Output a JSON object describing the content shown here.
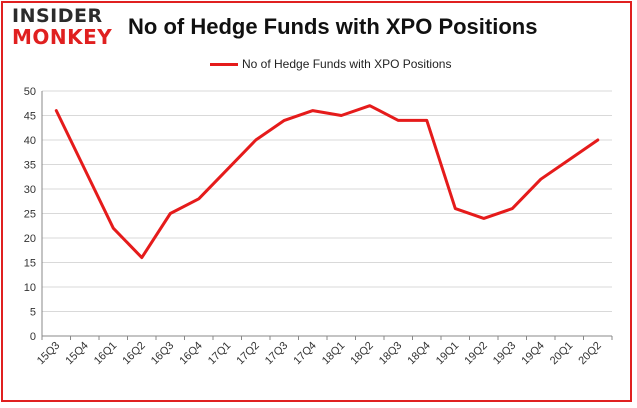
{
  "logo": {
    "line1": "INSIDER",
    "line2": "MONKEY"
  },
  "chart_data": {
    "type": "line",
    "title": "No of Hedge Funds with XPO Positions",
    "legend_position": "top-center",
    "grid": "horizontal",
    "xlabel": "",
    "ylabel": "",
    "ylim": [
      0,
      50
    ],
    "yticks": [
      0,
      5,
      10,
      15,
      20,
      25,
      30,
      35,
      40,
      45,
      50
    ],
    "categories": [
      "15Q3",
      "15Q4",
      "16Q1",
      "16Q2",
      "16Q3",
      "16Q4",
      "17Q1",
      "17Q2",
      "17Q3",
      "17Q4",
      "18Q1",
      "18Q2",
      "18Q3",
      "18Q4",
      "19Q1",
      "19Q2",
      "19Q3",
      "19Q4",
      "20Q1",
      "20Q2"
    ],
    "series": [
      {
        "name": "No of Hedge Funds with XPO Positions",
        "color": "#e51b1b",
        "values": [
          46,
          34,
          22,
          16,
          25,
          28,
          34,
          40,
          44,
          46,
          45,
          47,
          44,
          44,
          26,
          24,
          26,
          32,
          36,
          40
        ]
      }
    ]
  }
}
